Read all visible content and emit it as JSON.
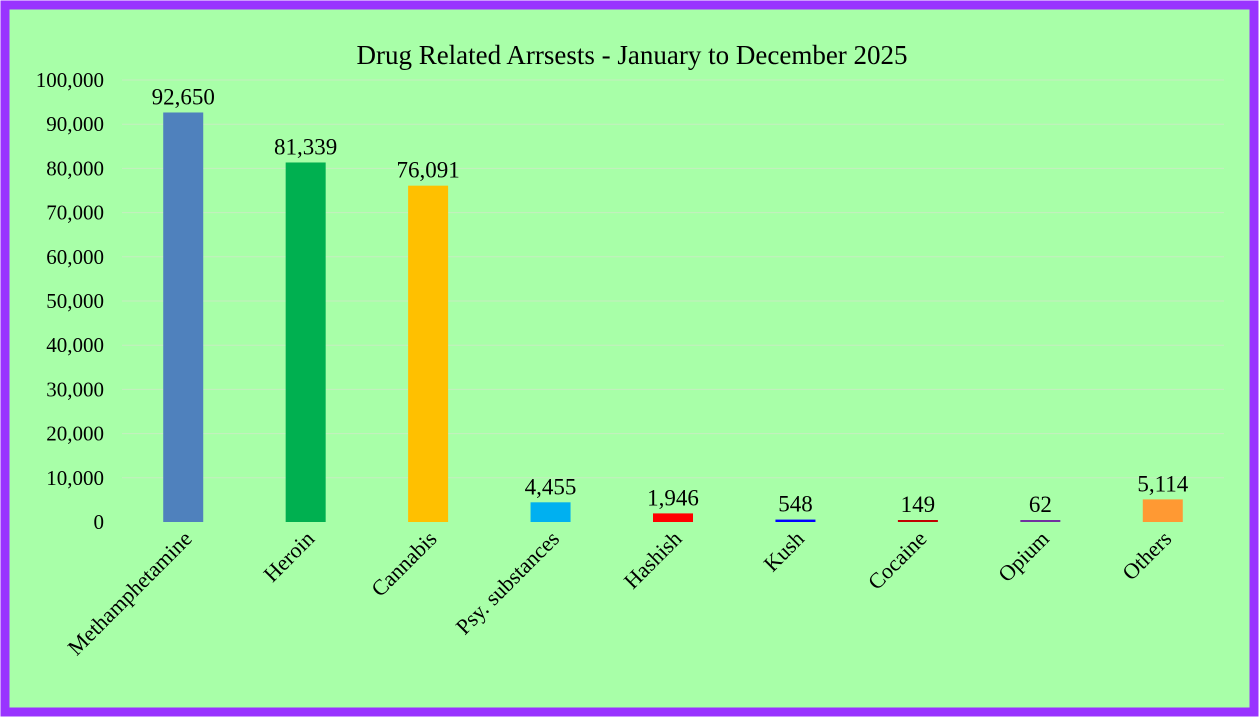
{
  "chart_data": {
    "type": "bar",
    "title": "Drug Related Arrsests - January to December 2025",
    "xlabel": "",
    "ylabel": "",
    "ylim": [
      0,
      100000
    ],
    "y_ticks": [
      "0",
      "10,000",
      "20,000",
      "30,000",
      "40,000",
      "50,000",
      "60,000",
      "70,000",
      "80,000",
      "90,000",
      "100,000"
    ],
    "y_tick_values": [
      0,
      10000,
      20000,
      30000,
      40000,
      50000,
      60000,
      70000,
      80000,
      90000,
      100000
    ],
    "categories": [
      "Methamphetamine",
      "Heroin",
      "Cannabis",
      "Psy. substances",
      "Hashish",
      "Kush",
      "Cocaine",
      "Opium",
      "Others"
    ],
    "values": [
      92650,
      81339,
      76091,
      4455,
      1946,
      548,
      149,
      62,
      5114
    ],
    "data_labels": [
      "92,650",
      "81,339",
      "76,091",
      "4,455",
      "1,946",
      "548",
      "149",
      "62",
      "5,114"
    ],
    "bar_colors": [
      "#4f81bd",
      "#00b050",
      "#ffc000",
      "#00b0f0",
      "#ff0000",
      "#0000ff",
      "#c00000",
      "#7030a0",
      "#ff9933"
    ],
    "grid": true,
    "legend": "none",
    "background_color": "#a8ffa8",
    "border_color": "#9933ff"
  }
}
